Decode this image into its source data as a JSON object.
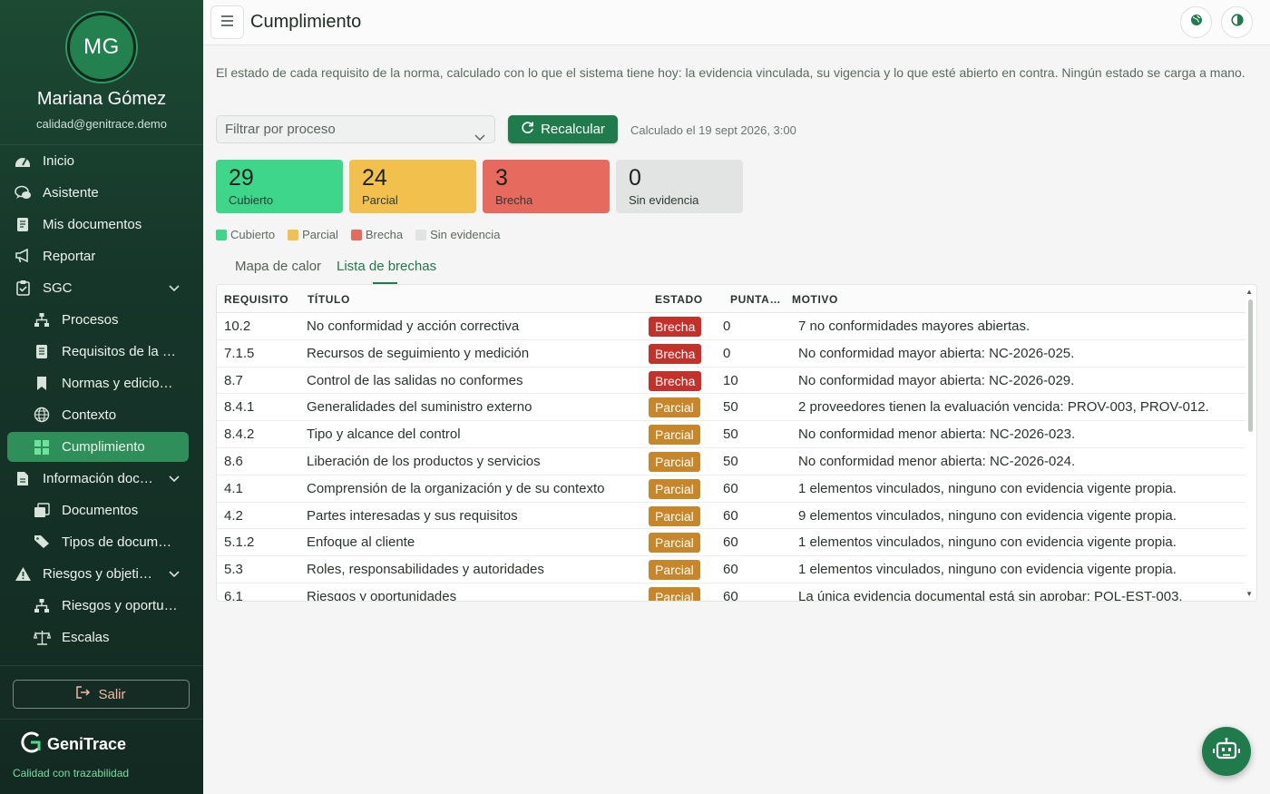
{
  "user": {
    "initials": "MG",
    "name": "Mariana Gómez",
    "email": "calidad@genitrace.demo"
  },
  "nav": {
    "inicio": "Inicio",
    "asistente": "Asistente",
    "mis_documentos": "Mis documentos",
    "reportar": "Reportar",
    "sgc": "SGC",
    "procesos": "Procesos",
    "requisitos": "Requisitos de la norma",
    "normas": "Normas y ediciones",
    "contexto": "Contexto",
    "cumplimiento": "Cumplimiento",
    "informacion": "Información documentada",
    "documentos": "Documentos",
    "tipos": "Tipos de documento",
    "riesgos_obj": "Riesgos y objetivos",
    "riesgos_op": "Riesgos y oportunidades",
    "escalas": "Escalas"
  },
  "salir": "Salir",
  "brand": {
    "name": "GeniTrace",
    "tagline": "Calidad con trazabilidad"
  },
  "header": {
    "title": "Cumplimiento"
  },
  "intro": "El estado de cada requisito de la norma, calculado con lo que el sistema tiene hoy: la evidencia vinculada, su vigencia y lo que esté abierto en contra. Ningún estado se carga a mano.",
  "filter": {
    "placeholder": "Filtrar por proceso"
  },
  "recalc": {
    "label": "Recalcular",
    "calculated_at": "Calculado el 19 sept 2026, 3:00"
  },
  "stats": [
    {
      "value": "29",
      "label": "Cubierto",
      "color": "#3ed68a"
    },
    {
      "value": "24",
      "label": "Parcial",
      "color": "#f2c04c"
    },
    {
      "value": "3",
      "label": "Brecha",
      "color": "#e76a5f"
    },
    {
      "value": "0",
      "label": "Sin evidencia",
      "color": "#e1e4e2"
    }
  ],
  "legend": [
    "Cubierto",
    "Parcial",
    "Brecha",
    "Sin evidencia"
  ],
  "tabs": [
    "Mapa de calor",
    "Lista de brechas"
  ],
  "table": {
    "headers": [
      "REQUISITO",
      "TÍTULO",
      "ESTADO",
      "PUNTA…",
      "MOTIVO"
    ],
    "rows": [
      [
        "10.2",
        "No conformidad y acción correctiva",
        "Brecha",
        "0",
        "7 no conformidades mayores abiertas."
      ],
      [
        "7.1.5",
        "Recursos de seguimiento y medición",
        "Brecha",
        "0",
        "No conformidad mayor abierta: NC-2026-025."
      ],
      [
        "8.7",
        "Control de las salidas no conformes",
        "Brecha",
        "10",
        "No conformidad mayor abierta: NC-2026-029."
      ],
      [
        "8.4.1",
        "Generalidades del suministro externo",
        "Parcial",
        "50",
        "2 proveedores tienen la evaluación vencida: PROV-003, PROV-012."
      ],
      [
        "8.4.2",
        "Tipo y alcance del control",
        "Parcial",
        "50",
        "No conformidad menor abierta: NC-2026-023."
      ],
      [
        "8.6",
        "Liberación de los productos y servicios",
        "Parcial",
        "50",
        "No conformidad menor abierta: NC-2026-024."
      ],
      [
        "4.1",
        "Comprensión de la organización y de su contexto",
        "Parcial",
        "60",
        "1 elementos vinculados, ninguno con evidencia vigente propia."
      ],
      [
        "4.2",
        "Partes interesadas y sus requisitos",
        "Parcial",
        "60",
        "9 elementos vinculados, ninguno con evidencia vigente propia."
      ],
      [
        "5.1.2",
        "Enfoque al cliente",
        "Parcial",
        "60",
        "1 elementos vinculados, ninguno con evidencia vigente propia."
      ],
      [
        "5.3",
        "Roles, responsabilidades y autoridades",
        "Parcial",
        "60",
        "1 elementos vinculados, ninguno con evidencia vigente propia."
      ],
      [
        "6.1",
        "Riesgos y oportunidades",
        "Parcial",
        "60",
        "La única evidencia documental está sin aprobar: POL-EST-003."
      ]
    ]
  }
}
